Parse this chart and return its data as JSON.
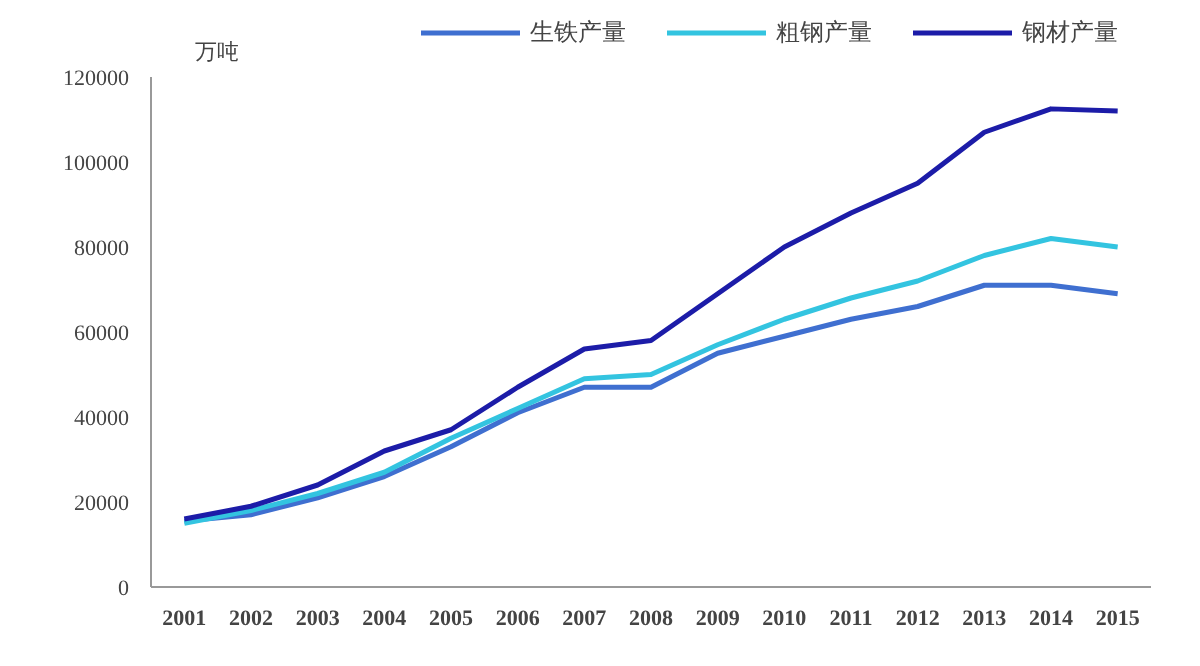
{
  "chart_data": {
    "type": "line",
    "ylabel": "万吨",
    "categories": [
      "2001",
      "2002",
      "2003",
      "2004",
      "2005",
      "2006",
      "2007",
      "2008",
      "2009",
      "2010",
      "2011",
      "2012",
      "2013",
      "2014",
      "2015"
    ],
    "series": [
      {
        "name": "生铁产量",
        "color": "#3f6fd0",
        "values": [
          15500,
          17000,
          21000,
          26000,
          33000,
          41000,
          47000,
          47000,
          55000,
          59000,
          63000,
          66000,
          71000,
          71000,
          69000
        ]
      },
      {
        "name": "粗钢产量",
        "color": "#33c4e0",
        "values": [
          15000,
          18000,
          22000,
          27000,
          35000,
          42000,
          49000,
          50000,
          57000,
          63000,
          68000,
          72000,
          78000,
          82000,
          80000
        ]
      },
      {
        "name": "钢材产量",
        "color": "#1c1ca8",
        "values": [
          16000,
          19000,
          24000,
          32000,
          37000,
          47000,
          56000,
          58000,
          69000,
          80000,
          88000,
          95000,
          107000,
          112500,
          112000
        ]
      }
    ],
    "ylim": [
      0,
      120000
    ],
    "yticks": [
      0,
      20000,
      40000,
      60000,
      80000,
      100000,
      120000
    ],
    "grid": false,
    "legend": "top"
  }
}
